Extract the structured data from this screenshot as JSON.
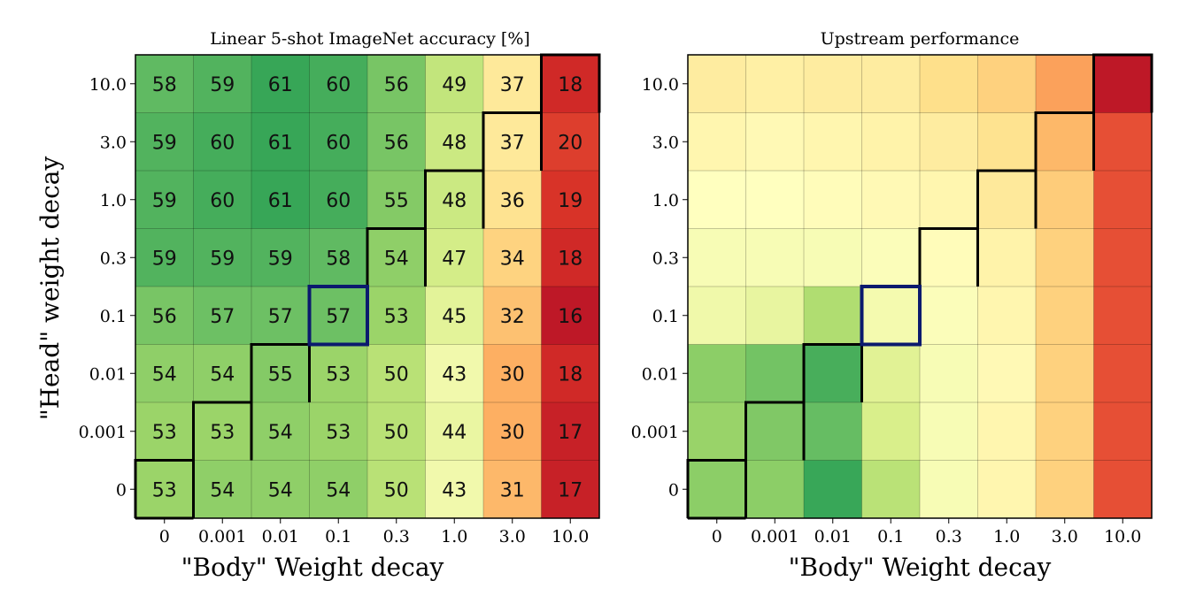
{
  "chart_data": [
    {
      "type": "heatmap",
      "title": "Linear 5-shot ImageNet accuracy [%]",
      "xlabel": "\"Body\" Weight decay",
      "ylabel": "\"Head\" weight decay",
      "x_categories": [
        "0",
        "0.001",
        "0.01",
        "0.1",
        "0.3",
        "1.0",
        "3.0",
        "10.0"
      ],
      "y_categories": [
        "10.0",
        "3.0",
        "1.0",
        "0.3",
        "0.1",
        "0.01",
        "0.001",
        "0"
      ],
      "values": [
        [
          58,
          59,
          61,
          60,
          56,
          49,
          37,
          18
        ],
        [
          59,
          60,
          61,
          60,
          56,
          48,
          37,
          20
        ],
        [
          59,
          60,
          61,
          60,
          55,
          48,
          36,
          19
        ],
        [
          59,
          59,
          59,
          58,
          54,
          47,
          34,
          18
        ],
        [
          56,
          57,
          57,
          57,
          53,
          45,
          32,
          16
        ],
        [
          54,
          54,
          55,
          53,
          50,
          43,
          30,
          18
        ],
        [
          53,
          53,
          54,
          53,
          50,
          44,
          30,
          17
        ],
        [
          53,
          54,
          54,
          54,
          50,
          43,
          31,
          17
        ]
      ],
      "colormap": "RdYlGn",
      "show_values": true,
      "highlight_cell": {
        "x": "0.1",
        "y": "0.1",
        "color": "#0b1a6e"
      },
      "boundary_color": "#000000"
    },
    {
      "type": "heatmap",
      "title": "Upstream performance",
      "xlabel": "\"Body\" Weight decay",
      "ylabel": "",
      "x_categories": [
        "0",
        "0.001",
        "0.01",
        "0.1",
        "0.3",
        "1.0",
        "3.0",
        "10.0"
      ],
      "y_categories": [
        "10.0",
        "3.0",
        "1.0",
        "0.3",
        "0.1",
        "0.01",
        "0.001",
        "0"
      ],
      "values": [
        [
          0.44,
          0.45,
          0.44,
          0.44,
          0.4,
          0.37,
          0.28,
          0.05
        ],
        [
          0.47,
          0.48,
          0.47,
          0.46,
          0.44,
          0.41,
          0.32,
          0.15
        ],
        [
          0.5,
          0.5,
          0.49,
          0.48,
          0.47,
          0.43,
          0.36,
          0.15
        ],
        [
          0.52,
          0.52,
          0.52,
          0.51,
          0.49,
          0.46,
          0.37,
          0.15
        ],
        [
          0.54,
          0.56,
          0.68,
          0.53,
          0.51,
          0.47,
          0.37,
          0.15
        ],
        [
          0.74,
          0.78,
          0.84,
          0.58,
          0.52,
          0.48,
          0.37,
          0.15
        ],
        [
          0.72,
          0.76,
          0.8,
          0.6,
          0.52,
          0.47,
          0.37,
          0.15
        ],
        [
          0.74,
          0.74,
          0.86,
          0.66,
          0.52,
          0.47,
          0.37,
          0.15
        ]
      ],
      "colormap": "RdYlGn",
      "show_values": false,
      "highlight_cell": {
        "x": "0.1",
        "y": "0.1",
        "color": "#0b1a6e"
      },
      "boundary_color": "#000000"
    }
  ]
}
